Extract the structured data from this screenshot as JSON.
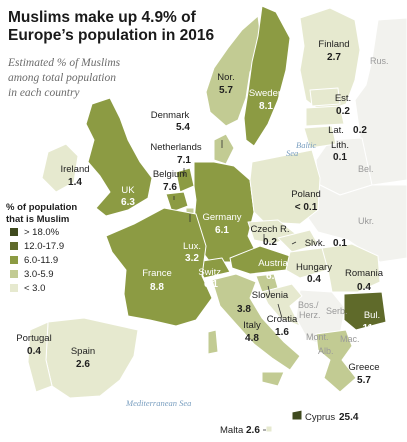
{
  "title_line1": "Muslims make up 4.9% of",
  "title_line2": "Europe’s population in 2016",
  "subtitle_lines": [
    "Estimated % of Muslims",
    "among total population",
    "in each country"
  ],
  "colors": {
    "bin_gt18": "#3f4a1e",
    "bin_12_18": "#5f6a2a",
    "bin_6_12": "#8c9b43",
    "bin_3_6": "#c2cb93",
    "bin_lt3": "#e6e9cf",
    "no_data": "#f2f2ee",
    "sea": "#ffffff"
  },
  "legend": {
    "title_line1": "% of population",
    "title_line2": "that is Muslim",
    "items": [
      {
        "label": "> 18.0%",
        "color_key": "bin_gt18"
      },
      {
        "label": "12.0-17.9",
        "color_key": "bin_12_18"
      },
      {
        "label": "6.0-11.9",
        "color_key": "bin_6_12"
      },
      {
        "label": "3.0-5.9",
        "color_key": "bin_3_6"
      },
      {
        "label": "< 3.0",
        "color_key": "bin_lt3"
      }
    ]
  },
  "countries": [
    {
      "name": "Finland",
      "value": "2.7"
    },
    {
      "name": "Nor.",
      "value": "5.7"
    },
    {
      "name": "Sweden",
      "value": "8.1"
    },
    {
      "name": "Est.",
      "value": "0.2"
    },
    {
      "name": "Lat.",
      "value": "0.2"
    },
    {
      "name": "Lith.",
      "value": "0.1"
    },
    {
      "name": "Denmark",
      "value": "5.4"
    },
    {
      "name": "Ireland",
      "value": "1.4"
    },
    {
      "name": "UK",
      "value": "6.3"
    },
    {
      "name": "Netherlands",
      "value": "7.1"
    },
    {
      "name": "Belgium",
      "value": "7.6"
    },
    {
      "name": "Germany",
      "value": "6.1"
    },
    {
      "name": "Poland",
      "value": "< 0.1"
    },
    {
      "name": "Lux.",
      "value": "3.2"
    },
    {
      "name": "Czech R.",
      "value": "0.2"
    },
    {
      "name": "Slvk.",
      "value": "0.1"
    },
    {
      "name": "France",
      "value": "8.8"
    },
    {
      "name": "Switz.",
      "value": "6.1"
    },
    {
      "name": "Austria",
      "value": "6.9"
    },
    {
      "name": "Hungary",
      "value": "0.4"
    },
    {
      "name": "Romania",
      "value": "0.4"
    },
    {
      "name": "Slovenia",
      "value": "3.8"
    },
    {
      "name": "Croatia",
      "value": "1.6"
    },
    {
      "name": "Italy",
      "value": "4.8"
    },
    {
      "name": "Bul.",
      "value": "11.1"
    },
    {
      "name": "Portugal",
      "value": "0.4"
    },
    {
      "name": "Spain",
      "value": "2.6"
    },
    {
      "name": "Greece",
      "value": "5.7"
    },
    {
      "name": "Cyprus",
      "value": "25.4"
    },
    {
      "name": "Malta",
      "value": "2.6"
    }
  ],
  "no_data_labels": [
    "Rus.",
    "Bel.",
    "Ukr.",
    "Serb.",
    "Bos./",
    "Herz.",
    "Mont.",
    "Mac.",
    "Alb."
  ],
  "seas": [
    "Baltic",
    "Sea",
    "Mediterranean Sea"
  ]
}
